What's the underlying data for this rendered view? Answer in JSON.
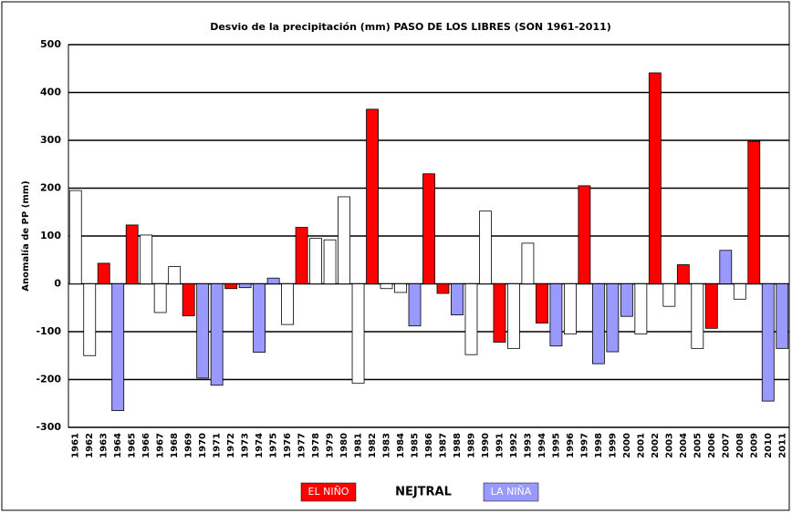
{
  "chart_data": {
    "type": "bar",
    "title": "Desvio de la precipitación (mm) PASO DE LOS LIBRES (SON 1961-2011)",
    "y_label": "Anomalía de PP (mm)",
    "categories": [
      "1961",
      "1962",
      "1963",
      "1964",
      "1965",
      "1966",
      "1967",
      "1968",
      "1969",
      "1970",
      "1971",
      "1972",
      "1973",
      "1974",
      "1975",
      "1976",
      "1977",
      "1978",
      "1979",
      "1980",
      "1981",
      "1982",
      "1983",
      "1984",
      "1985",
      "1986",
      "1987",
      "1988",
      "1989",
      "1990",
      "1991",
      "1992",
      "1993",
      "1994",
      "1995",
      "1996",
      "1997",
      "1998",
      "1999",
      "2000",
      "2001",
      "2002",
      "2003",
      "2004",
      "2005",
      "2006",
      "2007",
      "2008",
      "2009",
      "2010",
      "2011"
    ],
    "values": [
      195,
      -150,
      43,
      -265,
      123,
      102,
      -60,
      36,
      -67,
      -197,
      -212,
      -10,
      -8,
      -143,
      12,
      -85,
      118,
      95,
      92,
      182,
      -208,
      365,
      -10,
      -18,
      -88,
      230,
      -20,
      -65,
      -148,
      152,
      -122,
      -135,
      85,
      -82,
      -130,
      -105,
      205,
      -167,
      -142,
      -68,
      -105,
      441,
      -47,
      40,
      -135,
      -93,
      70,
      -32,
      298,
      -245,
      -135
    ],
    "phase": [
      "NEJTRAL",
      "NEJTRAL",
      "EL NIÑO",
      "LA NIÑA",
      "EL NIÑO",
      "NEJTRAL",
      "NEJTRAL",
      "NEJTRAL",
      "EL NIÑO",
      "LA NIÑA",
      "LA NIÑA",
      "EL NIÑO",
      "LA NIÑA",
      "LA NIÑA",
      "LA NIÑA",
      "NEJTRAL",
      "EL NIÑO",
      "NEJTRAL",
      "NEJTRAL",
      "NEJTRAL",
      "NEJTRAL",
      "EL NIÑO",
      "NEJTRAL",
      "NEJTRAL",
      "LA NIÑA",
      "EL NIÑO",
      "EL NIÑO",
      "LA NIÑA",
      "NEJTRAL",
      "NEJTRAL",
      "EL NIÑO",
      "NEJTRAL",
      "NEJTRAL",
      "EL NIÑO",
      "LA NIÑA",
      "NEJTRAL",
      "EL NIÑO",
      "LA NIÑA",
      "LA NIÑA",
      "LA NIÑA",
      "NEJTRAL",
      "EL NIÑO",
      "NEJTRAL",
      "EL NIÑO",
      "NEJTRAL",
      "EL NIÑO",
      "LA NIÑA",
      "NEJTRAL",
      "EL NIÑO",
      "LA NIÑA",
      "LA NIÑA"
    ],
    "legend": [
      {
        "name": "EL NIÑO",
        "color": "#ff0000"
      },
      {
        "name": "NEJTRAL",
        "color": "#ffffff"
      },
      {
        "name": "LA NIÑA",
        "color": "#9999ff"
      }
    ],
    "ylim": [
      -300,
      500
    ],
    "yticks": [
      -300,
      -200,
      -100,
      0,
      100,
      200,
      300,
      400,
      500
    ],
    "grid": true
  }
}
